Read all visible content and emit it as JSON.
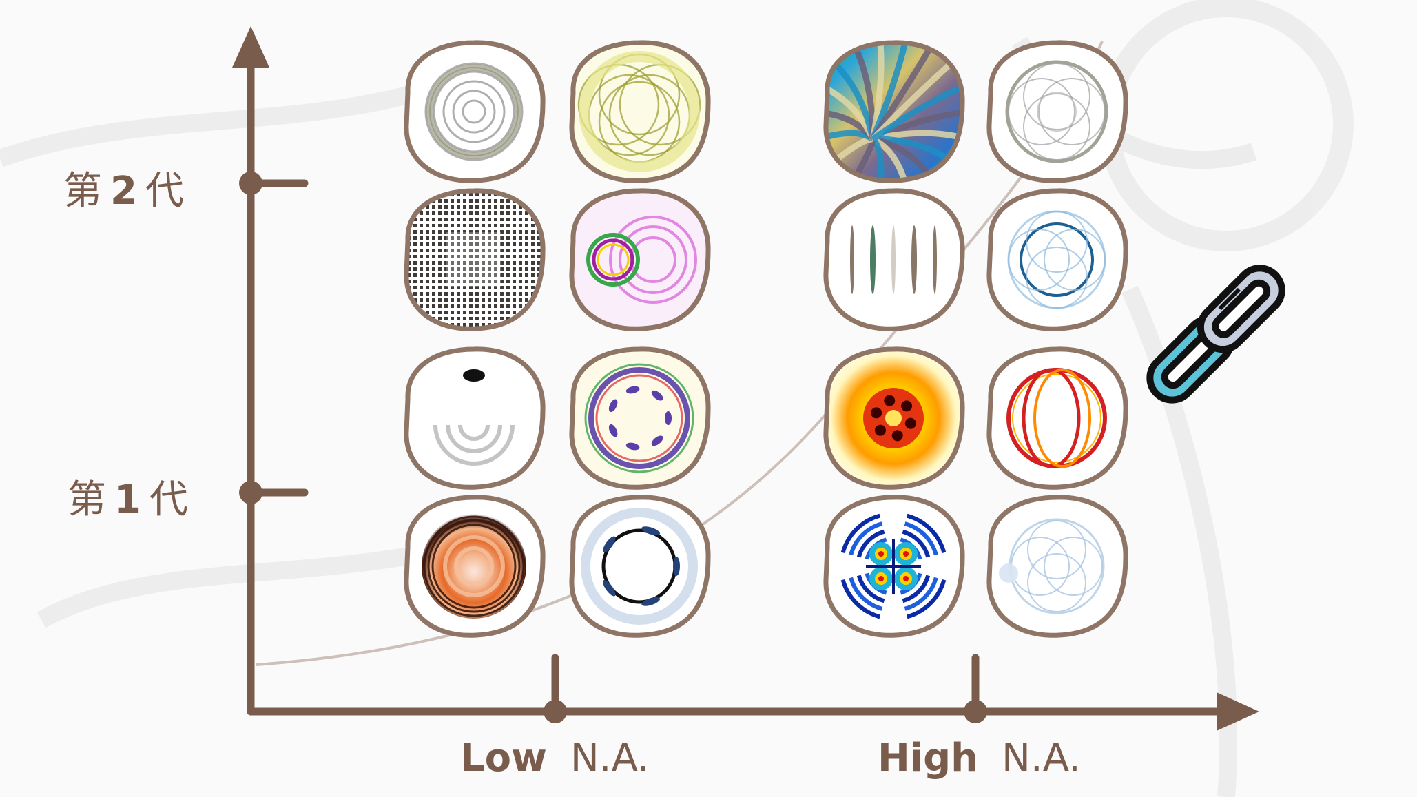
{
  "y_axis": {
    "ticks": [
      {
        "prefix": "第",
        "number": "1",
        "suffix": "代"
      },
      {
        "prefix": "第",
        "number": "2",
        "suffix": "代"
      }
    ]
  },
  "x_axis": {
    "ticks": [
      {
        "strong": "Low",
        "unit": "N.A."
      },
      {
        "strong": "High",
        "unit": "N.A."
      }
    ]
  },
  "colors": {
    "axis": "#7a5c4c",
    "frame": "#8f7566",
    "link_outline": "#111111",
    "link_fill_1": "#5cc3d8",
    "link_fill_2": "#c7cedd",
    "background": "#fafafa"
  },
  "beam_patterns": [
    {
      "na": "Low",
      "generation": "2",
      "style": "gray-rings"
    },
    {
      "na": "Low",
      "generation": "2",
      "style": "yellow-overlapping-rings"
    },
    {
      "na": "High",
      "generation": "2",
      "style": "rainbow-spiral"
    },
    {
      "na": "High",
      "generation": "2",
      "style": "gray-lace-rings"
    },
    {
      "na": "Low",
      "generation": "2",
      "style": "black-square-lattice"
    },
    {
      "na": "Low",
      "generation": "2",
      "style": "magenta-rings"
    },
    {
      "na": "High",
      "generation": "2",
      "style": "vertical-streaks"
    },
    {
      "na": "High",
      "generation": "2",
      "style": "blue-lace-rings"
    },
    {
      "na": "Low",
      "generation": "1",
      "style": "black-spot-gray-rings"
    },
    {
      "na": "Low",
      "generation": "1",
      "style": "purple-yellow-ring-lobes"
    },
    {
      "na": "High",
      "generation": "1",
      "style": "hot-six-lobes"
    },
    {
      "na": "High",
      "generation": "1",
      "style": "red-intersecting-rings"
    },
    {
      "na": "Low",
      "generation": "1",
      "style": "orange-concentric-rings"
    },
    {
      "na": "Low",
      "generation": "1",
      "style": "blue-ring-arcs"
    },
    {
      "na": "High",
      "generation": "1",
      "style": "jet-four-lobes"
    },
    {
      "na": "High",
      "generation": "1",
      "style": "blue-light-rings"
    }
  ],
  "link_icon": "chain-link-icon"
}
